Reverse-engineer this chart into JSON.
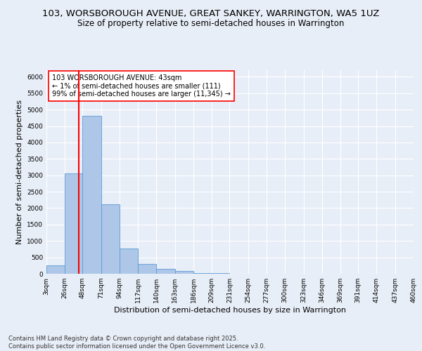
{
  "title_line1": "103, WORSBOROUGH AVENUE, GREAT SANKEY, WARRINGTON, WA5 1UZ",
  "title_line2": "Size of property relative to semi-detached houses in Warrington",
  "xlabel": "Distribution of semi-detached houses by size in Warrington",
  "ylabel": "Number of semi-detached properties",
  "footer_line1": "Contains HM Land Registry data © Crown copyright and database right 2025.",
  "footer_line2": "Contains public sector information licensed under the Open Government Licence v3.0.",
  "annotation_line1": "103 WORSBOROUGH AVENUE: 43sqm",
  "annotation_line2": "← 1% of semi-detached houses are smaller (111)",
  "annotation_line3": "99% of semi-detached houses are larger (11,345) →",
  "bar_edges": [
    3,
    26,
    48,
    71,
    94,
    117,
    140,
    163,
    186,
    209,
    231,
    254,
    277,
    300,
    323,
    346,
    369,
    391,
    414,
    437,
    460
  ],
  "bar_labels": [
    "3sqm",
    "26sqm",
    "48sqm",
    "71sqm",
    "94sqm",
    "117sqm",
    "140sqm",
    "163sqm",
    "186sqm",
    "209sqm",
    "231sqm",
    "254sqm",
    "277sqm",
    "300sqm",
    "323sqm",
    "346sqm",
    "369sqm",
    "391sqm",
    "414sqm",
    "437sqm",
    "460sqm"
  ],
  "bar_values": [
    250,
    3050,
    4800,
    2120,
    780,
    310,
    145,
    80,
    30,
    20,
    10,
    5,
    5,
    2,
    2,
    1,
    1,
    1,
    0,
    0
  ],
  "bar_color": "#aec6e8",
  "bar_edge_color": "#5b9bd5",
  "red_line_x": 43,
  "ylim": [
    0,
    6200
  ],
  "yticks": [
    0,
    500,
    1000,
    1500,
    2000,
    2500,
    3000,
    3500,
    4000,
    4500,
    5000,
    5500,
    6000
  ],
  "bg_color": "#e8eef7",
  "plot_bg_color": "#e8eef7",
  "grid_color": "#ffffff",
  "title_fontsize": 9.5,
  "subtitle_fontsize": 8.5,
  "axis_label_fontsize": 8,
  "tick_fontsize": 6.5,
  "annotation_fontsize": 7,
  "footer_fontsize": 6
}
